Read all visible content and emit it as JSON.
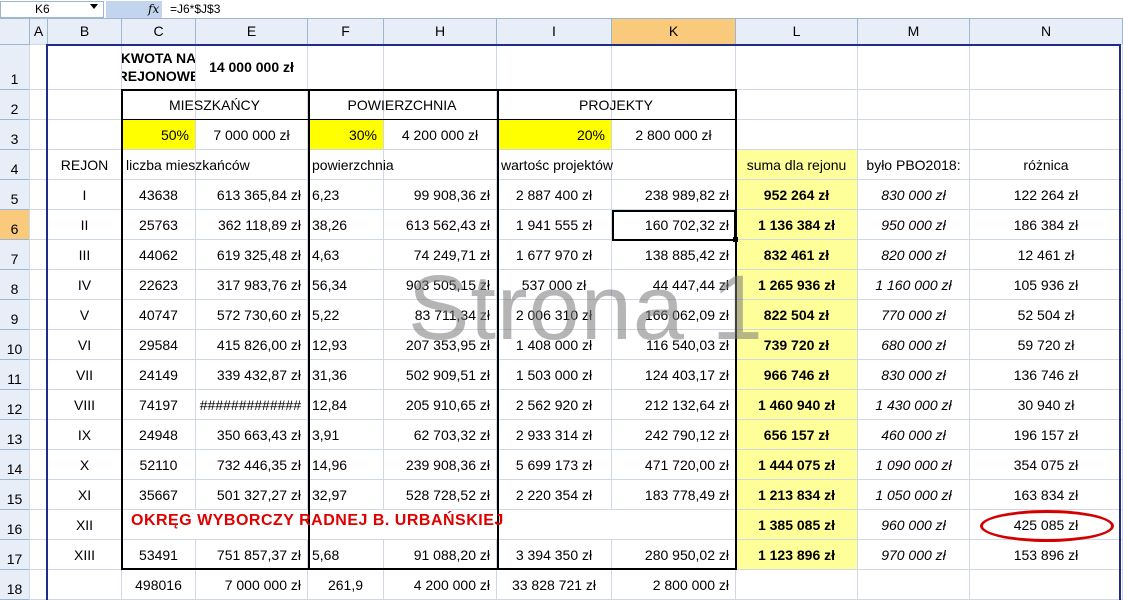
{
  "formula_bar": {
    "name_box": "K6",
    "fx": "fx",
    "formula": "=J6*$J$3"
  },
  "columns": [
    "A",
    "B",
    "C",
    "E",
    "F",
    "H",
    "I",
    "K",
    "L",
    "M",
    "N"
  ],
  "active_column": "K",
  "rows": [
    "1",
    "2",
    "3",
    "4",
    "5",
    "6",
    "7",
    "8",
    "9",
    "10",
    "11",
    "12",
    "13",
    "14",
    "15",
    "16",
    "17",
    "18"
  ],
  "active_row": "6",
  "header": {
    "kwota_label": "KWOTA NA REJONOWE",
    "kwota_value": "14 000 000 zł",
    "mieszkancy": "MIESZKAŃCY",
    "powierzchnia": "POWIERZCHNIA",
    "projekty": "PROJEKTY",
    "pct_m": "50%",
    "val_m": "7 000 000 zł",
    "pct_p": "30%",
    "val_p": "4 200 000 zł",
    "pct_j": "20%",
    "val_j": "2 800 000 zł",
    "rejon": "REJON",
    "liczba": "liczba mieszkańców",
    "pow": "powierzchnia",
    "wartosc": "wartośc projektów",
    "suma": "suma dla rejonu",
    "bylo": "było PBO2018:",
    "roznica": "różnica"
  },
  "data_rows": [
    {
      "rejon": "I",
      "c": "43638",
      "e": "613 365,84 zł",
      "f": "6,23",
      "h": "99 908,36 zł",
      "i": "2 887 400 zł",
      "k": "238 989,82 zł",
      "l": "952 264 zł",
      "m": "830 000 zł",
      "n": "122 264 zł"
    },
    {
      "rejon": "II",
      "c": "25763",
      "e": "362 118,89 zł",
      "f": "38,26",
      "h": "613 562,43 zł",
      "i": "1 941 555 zł",
      "k": "160 702,32 zł",
      "l": "1 136 384 zł",
      "m": "950 000 zł",
      "n": "186 384 zł"
    },
    {
      "rejon": "III",
      "c": "44062",
      "e": "619 325,48 zł",
      "f": "4,63",
      "h": "74 249,71 zł",
      "i": "1 677 970 zł",
      "k": "138 885,42 zł",
      "l": "832 461 zł",
      "m": "820 000 zł",
      "n": "12 461 zł"
    },
    {
      "rejon": "IV",
      "c": "22623",
      "e": "317 983,76 zł",
      "f": "56,34",
      "h": "903 505,15 zł",
      "i": "537 000 zł",
      "k": "44 447,44 zł",
      "l": "1 265 936 zł",
      "m": "1 160 000 zł",
      "n": "105 936 zł"
    },
    {
      "rejon": "V",
      "c": "40747",
      "e": "572 730,60 zł",
      "f": "5,22",
      "h": "83 711,34 zł",
      "i": "2 006 310 zł",
      "k": "166 062,09 zł",
      "l": "822 504 zł",
      "m": "770 000 zł",
      "n": "52 504 zł"
    },
    {
      "rejon": "VI",
      "c": "29584",
      "e": "415 826,00 zł",
      "f": "12,93",
      "h": "207 353,95 zł",
      "i": "1 408 000 zł",
      "k": "116 540,03 zł",
      "l": "739 720 zł",
      "m": "680 000 zł",
      "n": "59 720 zł"
    },
    {
      "rejon": "VII",
      "c": "24149",
      "e": "339 432,87 zł",
      "f": "31,36",
      "h": "502 909,51 zł",
      "i": "1 503 000 zł",
      "k": "124 403,17 zł",
      "l": "966 746 zł",
      "m": "830 000 zł",
      "n": "136 746 zł"
    },
    {
      "rejon": "VIII",
      "c": "74197",
      "e": "#############",
      "f": "12,84",
      "h": "205 910,65 zł",
      "i": "2 562 920 zł",
      "k": "212 132,64 zł",
      "l": "1 460 940 zł",
      "m": "1 430 000 zł",
      "n": "30 940 zł"
    },
    {
      "rejon": "IX",
      "c": "24948",
      "e": "350 663,43 zł",
      "f": "3,91",
      "h": "62 703,32 zł",
      "i": "2 933 314 zł",
      "k": "242 790,12 zł",
      "l": "656 157 zł",
      "m": "460 000 zł",
      "n": "196 157 zł"
    },
    {
      "rejon": "X",
      "c": "52110",
      "e": "732 446,35 zł",
      "f": "14,96",
      "h": "239 908,36 zł",
      "i": "5 699 173 zł",
      "k": "471 720,00 zł",
      "l": "1 444 075 zł",
      "m": "1 090 000 zł",
      "n": "354 075 zł"
    },
    {
      "rejon": "XI",
      "c": "35667",
      "e": "501 327,27 zł",
      "f": "32,97",
      "h": "528 728,52 zł",
      "i": "2 220 354 zł",
      "k": "183 778,49 zł",
      "l": "1 213 834 zł",
      "m": "1 050 000 zł",
      "n": "163 834 zł"
    },
    {
      "rejon": "XII",
      "c": "",
      "e": "",
      "f": "",
      "h": "",
      "i": "",
      "k": "",
      "l": "1 385 085 zł",
      "m": "960 000 zł",
      "n": "425 085 zł"
    },
    {
      "rejon": "XIII",
      "c": "53491",
      "e": "751 857,37 zł",
      "f": "5,68",
      "h": "91 088,20 zł",
      "i": "3 394 350 zł",
      "k": "280 950,02 zł",
      "l": "1 123 896 zł",
      "m": "970 000 zł",
      "n": "153 896 zł"
    }
  ],
  "totals": {
    "c": "498016",
    "e": "7 000 000 zł",
    "f": "261,9",
    "h": "4 200 000 zł",
    "i": "33 828 721 zł",
    "k": "2 800 000 zł"
  },
  "red_note": "OKRĘG WYBORCZY RADNEJ B. URBAŃSKIEJ",
  "watermark": "Strona 1",
  "colors": {
    "highlight_yellow": "#ffff00",
    "sum_yellow": "#ffff99",
    "note_red": "#e00000",
    "active_header": "#f9c97c"
  }
}
